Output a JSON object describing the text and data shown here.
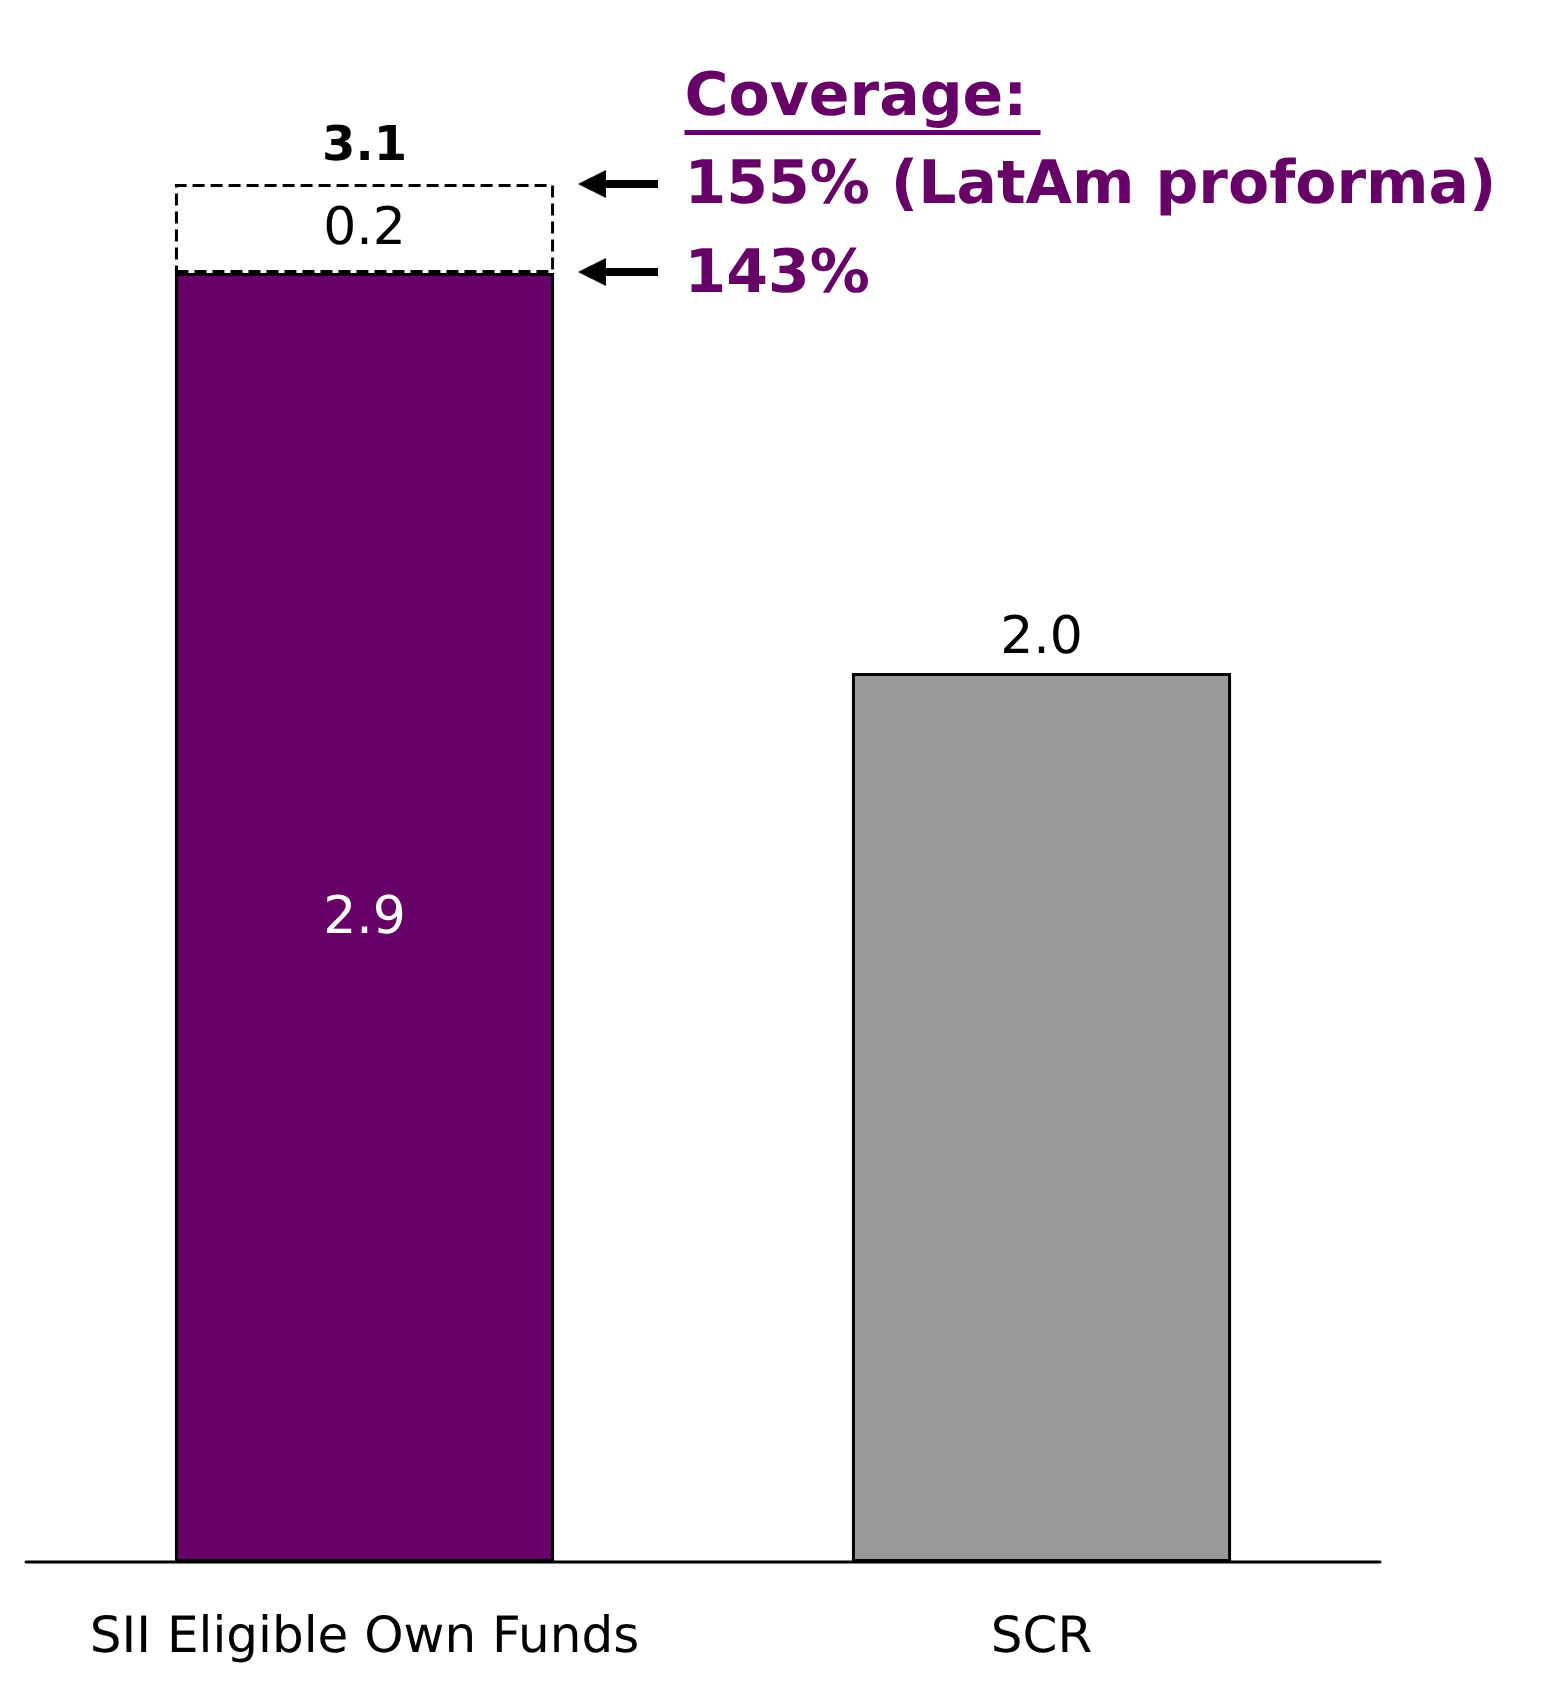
{
  "chart_data": {
    "type": "bar",
    "stacked": true,
    "categories": [
      "SII Eligible Own Funds",
      "SCR"
    ],
    "series": [
      {
        "colors": [
          "#660066",
          "#999999"
        ],
        "values": [
          2.9,
          2.0
        ],
        "value_labels": [
          "2.9",
          "2.0"
        ]
      },
      {
        "color": "#ffffff",
        "line_style": "dashed",
        "values": [
          0.2,
          null
        ],
        "value_labels": [
          "0.2",
          null
        ]
      }
    ],
    "totals": [
      "3.1",
      null
    ],
    "grid": false,
    "annotations": [
      "Coverage:",
      "155% (LatAm proforma)",
      "143%"
    ]
  }
}
